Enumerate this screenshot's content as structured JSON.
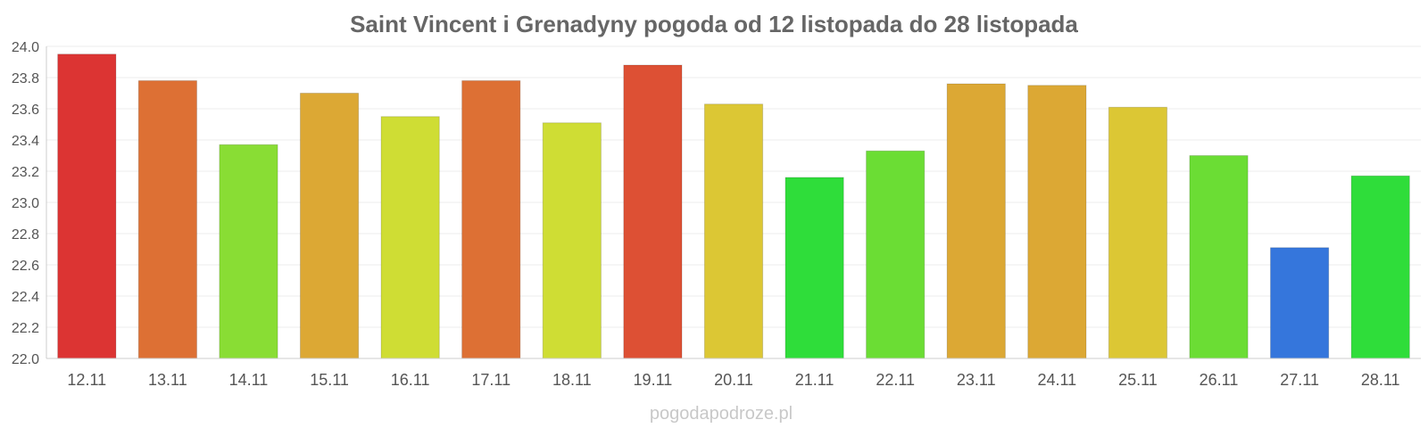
{
  "chart_data": {
    "type": "bar",
    "title": "Saint Vincent i Grenadyny pogoda od 12 listopada do 28 listopada",
    "xlabel": "",
    "ylabel": "",
    "ylim": [
      22.0,
      24.0
    ],
    "yticks": [
      "22.0",
      "22.2",
      "22.4",
      "22.6",
      "22.8",
      "23.0",
      "23.2",
      "23.4",
      "23.6",
      "23.8",
      "24.0"
    ],
    "grid": true,
    "categories": [
      "12.11",
      "13.11",
      "14.11",
      "15.11",
      "16.11",
      "17.11",
      "18.11",
      "19.11",
      "20.11",
      "21.11",
      "22.11",
      "23.11",
      "24.11",
      "25.11",
      "26.11",
      "27.11",
      "28.11"
    ],
    "values": [
      23.95,
      23.78,
      23.37,
      23.7,
      23.55,
      23.78,
      23.51,
      23.88,
      23.63,
      23.16,
      23.33,
      23.76,
      23.75,
      23.61,
      23.3,
      22.71,
      23.17
    ],
    "colors": [
      "#dc3433",
      "#dd7034",
      "#89dd34",
      "#dca834",
      "#cfdd34",
      "#dd7034",
      "#cfdd34",
      "#dd5034",
      "#dcc734",
      "#2fdd3a",
      "#6bdd34",
      "#dca834",
      "#dca834",
      "#dcc734",
      "#6bdd34",
      "#3576dc",
      "#2fdd3a"
    ]
  },
  "footer": {
    "credit": "pogodapodroze.pl"
  }
}
